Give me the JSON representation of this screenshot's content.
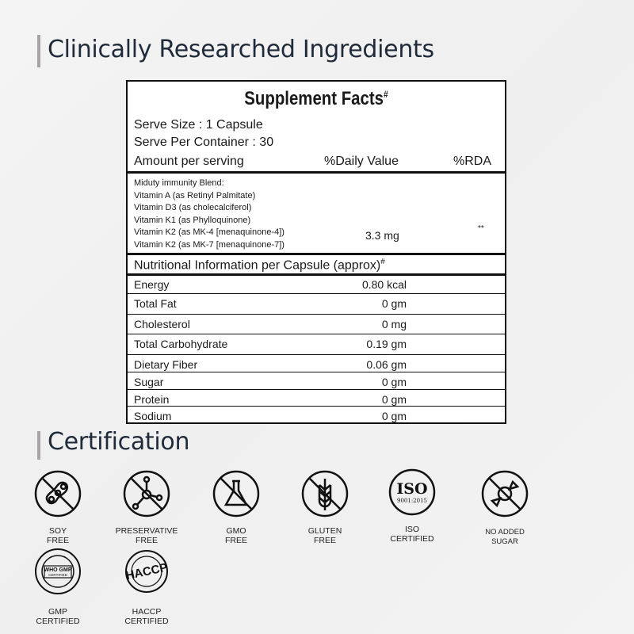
{
  "heading_ingredients": "Clinically Researched Ingredients",
  "facts": {
    "title": "Supplement Facts",
    "title_mark": "#",
    "serve_size": "Serve Size : 1 Capsule",
    "serve_per_container": "Serve Per Container : 30",
    "amount_header": "Amount per serving",
    "dv_header": "%Daily Value",
    "rda_header": "%RDA",
    "blend_lines": [
      "Miduty immunity Blend:",
      "Vitamin A (as Retinyl Palmitate)",
      "Vitamin D3 (as cholecalciferol)",
      "Vitamin K1 (as Phylloquinone)",
      "Vitamin K2 (as MK-4 [menaquinone-4])",
      "Vitamin K2 (as MK-7 [menaquinone-7])"
    ],
    "blend_amount": "3.3 mg",
    "blend_rda": "**",
    "nutrition_header": "Nutritional Information per Capsule (approx)",
    "nutrition_mark": "#",
    "nutrition": [
      {
        "name": "Energy",
        "value": "0.80 kcal"
      },
      {
        "name": "Total Fat",
        "value": "0 gm"
      },
      {
        "name": "Cholesterol",
        "value": "0 mg"
      },
      {
        "name": "Total Carbohydrate",
        "value": "0.19 gm"
      },
      {
        "name": "Dietary Fiber",
        "value": "0.06 gm"
      },
      {
        "name": "Sugar",
        "value": "0 gm"
      },
      {
        "name": "Protein",
        "value": "0 gm"
      },
      {
        "name": "Sodium",
        "value": "0 gm"
      }
    ]
  },
  "heading_certification": "Certification",
  "certs": [
    {
      "icon": "soy-free-icon",
      "l1": "SOY",
      "l2": "FREE"
    },
    {
      "icon": "preservative-free-icon",
      "l1": "PRESERVATIVE",
      "l2": "FREE"
    },
    {
      "icon": "gmo-free-icon",
      "l1": "GMO",
      "l2": "FREE"
    },
    {
      "icon": "gluten-free-icon",
      "l1": "GLUTEN",
      "l2": "FREE"
    },
    {
      "icon": "iso-icon",
      "l1": "ISO",
      "l2": "CERTIFIED",
      "badge": "ISO",
      "badge_sub": "9001:2015"
    },
    {
      "icon": "no-added-sugar-icon",
      "l1": "NO ADDED",
      "l2": "SUGAR"
    },
    {
      "icon": "gmp-icon",
      "l1": "GMP",
      "l2": "CERTIFIED",
      "badge": "WHO GMP",
      "badge_sub": "CERTIFIED"
    },
    {
      "icon": "haccp-icon",
      "l1": "HACCP",
      "l2": "CERTIFIED",
      "badge": "HACCP"
    }
  ]
}
